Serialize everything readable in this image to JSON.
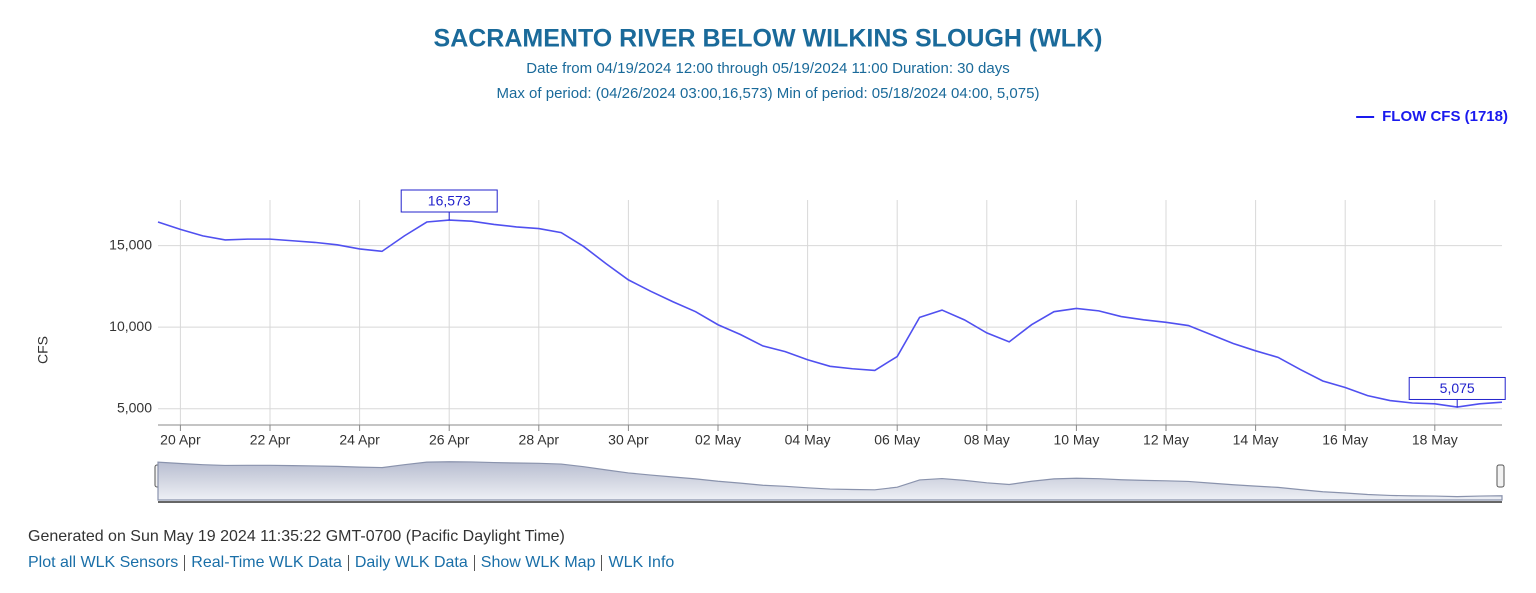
{
  "chart_data": {
    "type": "line",
    "title": "SACRAMENTO RIVER BELOW WILKINS SLOUGH (WLK)",
    "subtitle": [
      "Date from 04/19/2024 12:00  through 05/19/2024 11:00  Duration: 30 days",
      "Max of period: (04/26/2024 03:00,16,573)  Min of period: 05/18/2024 04:00, 5,075)"
    ],
    "y_label": "CFS",
    "categories": [
      null,
      "20 Apr",
      null,
      null,
      null,
      "22 Apr",
      null,
      null,
      null,
      "24 Apr",
      null,
      null,
      null,
      "26 Apr",
      null,
      null,
      null,
      "28 Apr",
      null,
      null,
      null,
      "30 Apr",
      null,
      null,
      null,
      "02 May",
      null,
      null,
      null,
      "04 May",
      null,
      null,
      null,
      "06 May",
      null,
      null,
      null,
      "08 May",
      null,
      null,
      null,
      "10 May",
      null,
      null,
      null,
      "12 May",
      null,
      null,
      null,
      "14 May",
      null,
      null,
      null,
      "16 May",
      null,
      null,
      null,
      "18 May",
      null,
      null,
      null
    ],
    "series": [
      {
        "name": "FLOW CFS (1718)",
        "color": "#5050f0",
        "values": [
          16450,
          16000,
          15600,
          15350,
          15400,
          15400,
          15300,
          15200,
          15050,
          14800,
          14650,
          15600,
          16450,
          16570,
          16500,
          16300,
          16150,
          16050,
          15800,
          14950,
          13900,
          12900,
          12200,
          11550,
          10950,
          10150,
          9550,
          8850,
          8500,
          8000,
          7600,
          7450,
          7350,
          8200,
          10600,
          11050,
          10450,
          9650,
          9100,
          10150,
          10950,
          11150,
          11000,
          10650,
          10450,
          10300,
          10100,
          9550,
          9000,
          8550,
          8150,
          7400,
          6700,
          6300,
          5800,
          5500,
          5350,
          5300,
          5100,
          5300,
          5400
        ]
      }
    ],
    "annotations": [
      {
        "value": 16573,
        "label": "16,573"
      },
      {
        "value": 5075,
        "label": "5,075"
      }
    ],
    "ylim": [
      4000,
      17800
    ],
    "yticks": [
      {
        "value": 5000,
        "label": "5,000"
      },
      {
        "value": 10000,
        "label": "10,000"
      },
      {
        "value": 15000,
        "label": "15,000"
      }
    ],
    "grid": true,
    "legend": "top-right",
    "navigator": true
  },
  "footer": {
    "generated": "Generated on Sun May 19 2024 11:35:22 GMT-0700 (Pacific Daylight Time)",
    "links": [
      "Plot all WLK Sensors",
      "Real-Time WLK Data",
      "Daily WLK Data",
      "Show WLK Map",
      "WLK Info"
    ]
  }
}
